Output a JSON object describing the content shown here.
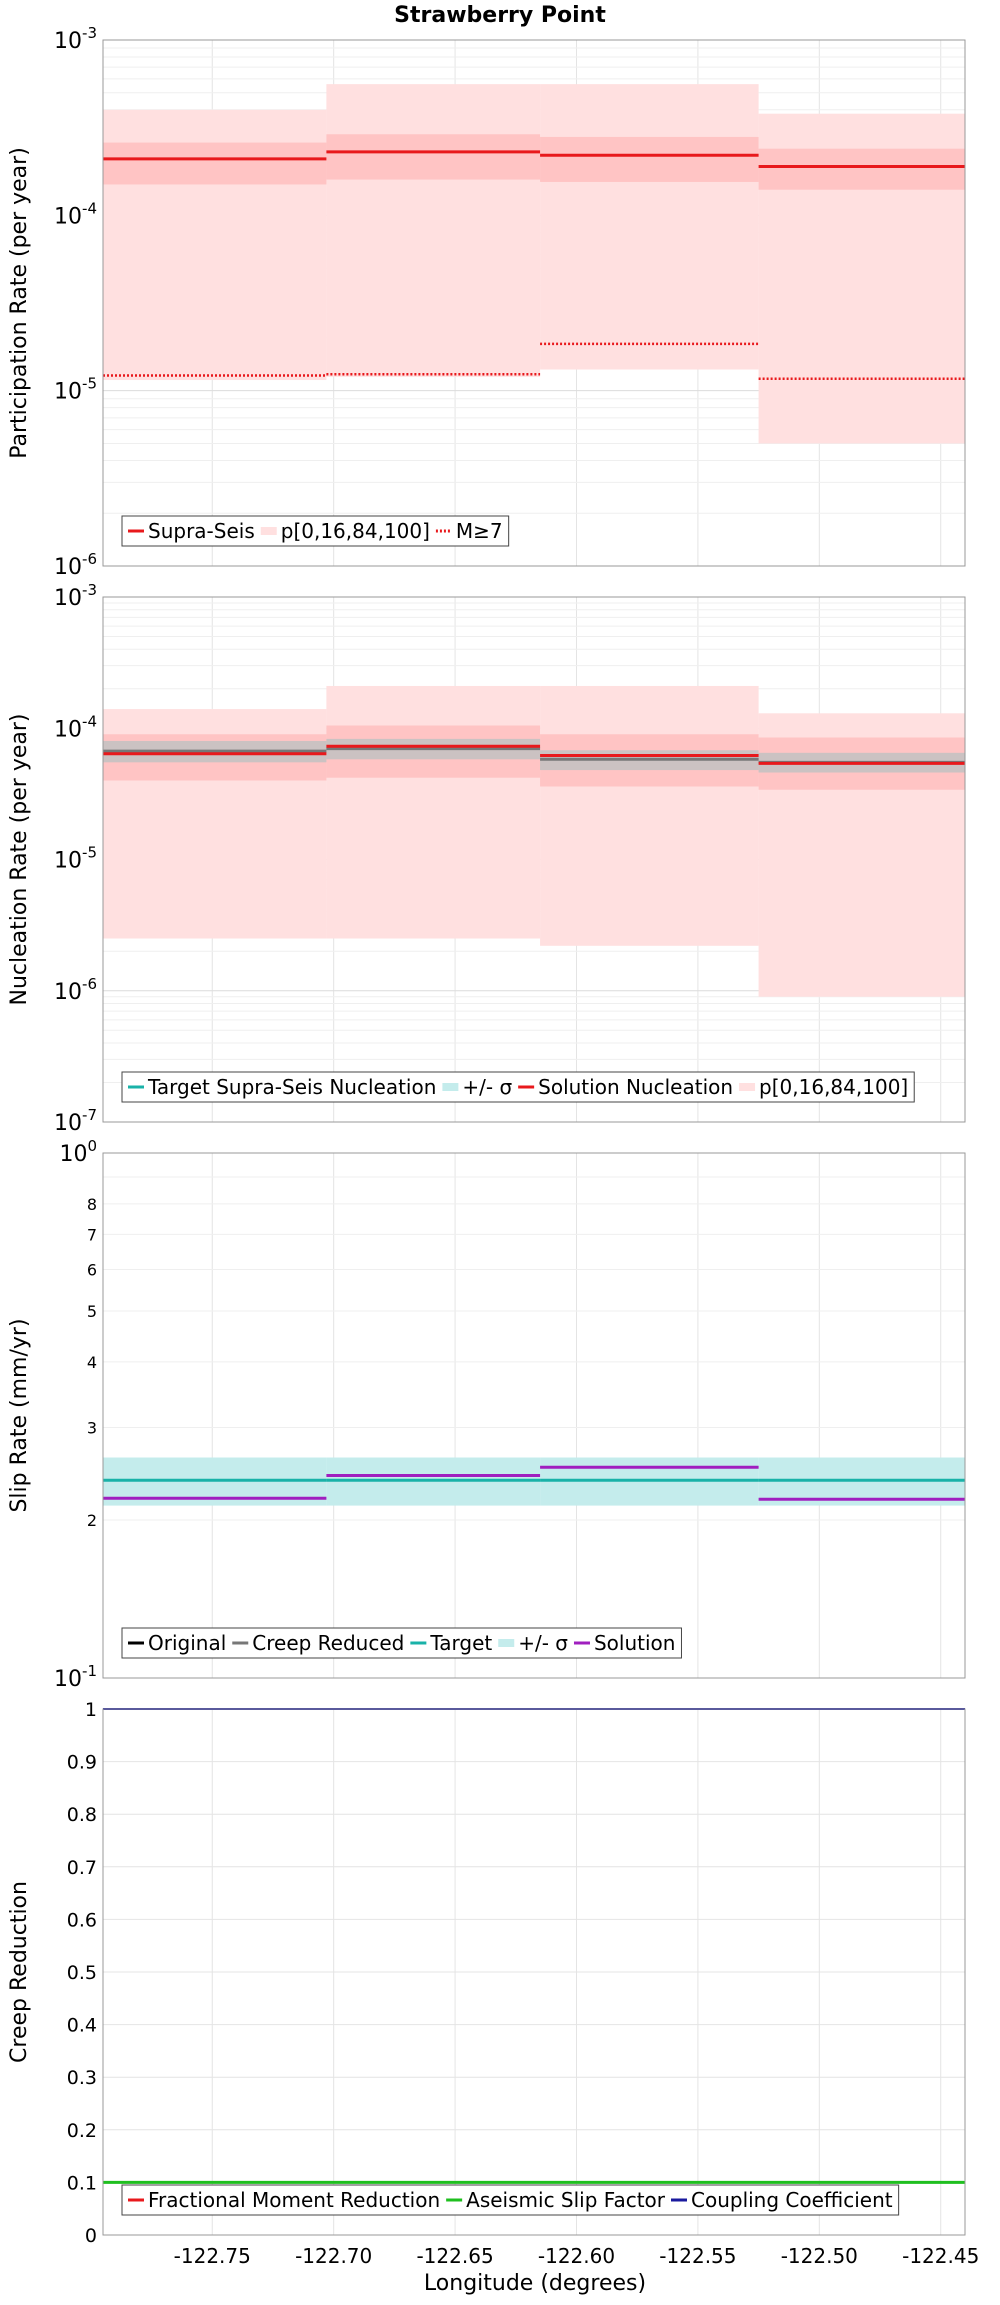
{
  "title": "Strawberry Point",
  "xlabel": "Longitude (degrees)",
  "colors": {
    "red": "#e8191c",
    "light_red": "#ffe0e0",
    "mid_red": "#ffc4c4",
    "gray": "#777777",
    "light_gray": "#c2c2c2",
    "cyan": "#19b2a8",
    "light_cyan": "#c4ecec",
    "purple": "#a01fbf",
    "green": "#1fbf1f",
    "navy": "#1a1a9e",
    "black": "#000000"
  },
  "chart_data": [
    {
      "type": "line",
      "ylabel": "Participation Rate (per year)",
      "yscale": "log",
      "ylim": [
        1e-06,
        0.001
      ],
      "xlim": [
        -122.795,
        -122.44
      ],
      "xticks": [
        "-122.75",
        "-122.70",
        "-122.65",
        "-122.60",
        "-122.55",
        "-122.50",
        "-122.45"
      ],
      "yticks": [
        {
          "base": "10",
          "exp": "-3"
        },
        {
          "base": "10",
          "exp": "-4"
        },
        {
          "base": "10",
          "exp": "-5"
        },
        {
          "base": "10",
          "exp": "-6"
        }
      ],
      "legend": [
        "Supra-Seis",
        "p[0,16,84,100]",
        "M≥7"
      ],
      "segments_x": [
        -122.795,
        -122.703,
        -122.615,
        -122.525,
        -122.44
      ],
      "series": [
        {
          "name": "Supra-Seis",
          "values": [
            0.00021,
            0.00023,
            0.00022,
            0.00019
          ]
        },
        {
          "name": "M≥7",
          "values": [
            1.22e-05,
            1.24e-05,
            1.85e-05,
            1.17e-05
          ]
        }
      ],
      "p_outer": [
        [
          1.15e-05,
          0.0004
        ],
        [
          1.2e-05,
          0.00056
        ],
        [
          1.32e-05,
          0.00056
        ],
        [
          5e-06,
          0.00038
        ]
      ],
      "p_inner": [
        [
          0.00015,
          0.00026
        ],
        [
          0.00016,
          0.00029
        ],
        [
          0.000155,
          0.00028
        ],
        [
          0.00014,
          0.00024
        ]
      ]
    },
    {
      "type": "line",
      "ylabel": "Nucleation Rate (per year)",
      "yscale": "log",
      "ylim": [
        1e-07,
        0.001
      ],
      "xlim": [
        -122.795,
        -122.44
      ],
      "xticks": [
        "-122.75",
        "-122.70",
        "-122.65",
        "-122.60",
        "-122.55",
        "-122.50",
        "-122.45"
      ],
      "yticks": [
        {
          "base": "10",
          "exp": "-3"
        },
        {
          "base": "10",
          "exp": "-4"
        },
        {
          "base": "10",
          "exp": "-5"
        },
        {
          "base": "10",
          "exp": "-6"
        },
        {
          "base": "10",
          "exp": "-7"
        }
      ],
      "legend": [
        "Target Supra-Seis Nucleation",
        "+/- σ",
        "Solution Nucleation",
        "p[0,16,84,100]"
      ],
      "segments_x": [
        -122.795,
        -122.703,
        -122.615,
        -122.525,
        -122.44
      ],
      "target": [
        6.7e-05,
        7e-05,
        5.8e-05,
        5.5e-05
      ],
      "target_band": [
        [
          5.5e-05,
          8e-05
        ],
        [
          5.8e-05,
          8.3e-05
        ],
        [
          4.8e-05,
          6.8e-05
        ],
        [
          4.6e-05,
          6.5e-05
        ]
      ],
      "solution": [
        6.4e-05,
        7.3e-05,
        6.2e-05,
        5.4e-05
      ],
      "p_outer": [
        [
          2.5e-06,
          0.00014
        ],
        [
          2.5e-06,
          0.00021
        ],
        [
          2.2e-06,
          0.00021
        ],
        [
          9e-07,
          0.00013
        ]
      ],
      "p_inner": [
        [
          4e-05,
          9e-05
        ],
        [
          4.2e-05,
          0.000105
        ],
        [
          3.6e-05,
          9e-05
        ],
        [
          3.4e-05,
          8.5e-05
        ]
      ]
    },
    {
      "type": "line",
      "ylabel": "Slip Rate (mm/yr)",
      "yscale": "log",
      "ylim": [
        0.1,
        1
      ],
      "xlim": [
        -122.795,
        -122.44
      ],
      "xticks": [
        "-122.75",
        "-122.70",
        "-122.65",
        "-122.60",
        "-122.55",
        "-122.50",
        "-122.45"
      ],
      "yticks_major": [
        {
          "base": "10",
          "exp": "0"
        },
        {
          "base": "10",
          "exp": "-1"
        }
      ],
      "yticks_minor": [
        {
          "value": 0.8,
          "label": "8"
        },
        {
          "value": 0.7,
          "label": "7"
        },
        {
          "value": 0.6,
          "label": "6"
        },
        {
          "value": 0.5,
          "label": "5"
        },
        {
          "value": 0.4,
          "label": "4"
        },
        {
          "value": 0.3,
          "label": "3"
        },
        {
          "value": 0.2,
          "label": "2"
        }
      ],
      "legend": [
        "Original",
        "Creep Reduced",
        "Target",
        "+/- σ",
        "Solution"
      ],
      "segments_x": [
        -122.795,
        -122.703,
        -122.615,
        -122.525,
        -122.44
      ],
      "target": [
        0.238,
        0.238,
        0.238,
        0.238
      ],
      "target_band": [
        [
          0.213,
          0.263
        ],
        [
          0.213,
          0.263
        ],
        [
          0.213,
          0.263
        ],
        [
          0.213,
          0.263
        ]
      ],
      "solution": [
        0.22,
        0.243,
        0.252,
        0.219
      ]
    },
    {
      "type": "line",
      "ylabel": "Creep Reduction",
      "yscale": "linear",
      "ylim": [
        0,
        1
      ],
      "xlim": [
        -122.795,
        -122.44
      ],
      "xticks": [
        "-122.75",
        "-122.70",
        "-122.65",
        "-122.60",
        "-122.55",
        "-122.50",
        "-122.45"
      ],
      "yticks": [
        "1",
        "0.9",
        "0.8",
        "0.7",
        "0.6",
        "0.5",
        "0.4",
        "0.3",
        "0.2",
        "0.1",
        "0"
      ],
      "legend": [
        "Fractional Moment Reduction",
        "Aseismic Slip Factor",
        "Coupling Coefficient"
      ],
      "series": [
        {
          "name": "Aseismic Slip Factor",
          "values": [
            0.1,
            0.1
          ]
        },
        {
          "name": "Coupling Coefficient",
          "values": [
            1.0,
            1.0
          ]
        }
      ]
    }
  ]
}
